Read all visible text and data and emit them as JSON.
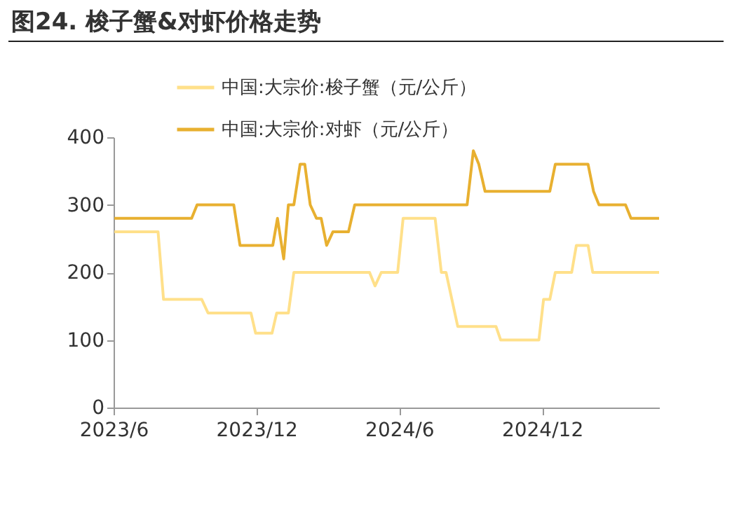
{
  "chart_data": {
    "type": "line",
    "title": "图24. 梭子蟹&对虾价格走势",
    "series": [
      {
        "name": "中国:大宗价:梭子蟹（元/公斤）",
        "color": "#ffe08a",
        "x": [
          "2023-06-02",
          "2023-07-28",
          "2023-08-04",
          "2023-09-22",
          "2023-09-30",
          "2023-11-24",
          "2023-11-30",
          "2023-12-21",
          "2023-12-27",
          "2024-01-11",
          "2024-01-18",
          "2024-04-24",
          "2024-05-01",
          "2024-05-09",
          "2024-05-30",
          "2024-06-06",
          "2024-07-17",
          "2024-07-25",
          "2024-07-31",
          "2024-08-15",
          "2024-10-03",
          "2024-10-09",
          "2024-11-27",
          "2024-12-03",
          "2024-12-11",
          "2024-12-18",
          "2025-01-08",
          "2025-01-14",
          "2025-01-29",
          "2025-02-04",
          "2025-04-30"
        ],
        "values": [
          260,
          260,
          160,
          160,
          140,
          140,
          110,
          110,
          140,
          140,
          200,
          200,
          180,
          200,
          200,
          280,
          280,
          200,
          200,
          120,
          120,
          100,
          100,
          160,
          160,
          200,
          200,
          240,
          240,
          200,
          200
        ]
      },
      {
        "name": "中国:大宗价:对虾（元/公斤）",
        "color": "#e8b030",
        "x": [
          "2023-06-02",
          "2023-09-09",
          "2023-09-16",
          "2023-11-02",
          "2023-11-10",
          "2023-12-22",
          "2023-12-28",
          "2024-01-05",
          "2024-01-11",
          "2024-01-18",
          "2024-01-26",
          "2024-02-01",
          "2024-02-08",
          "2024-02-16",
          "2024-02-22",
          "2024-02-29",
          "2024-03-08",
          "2024-03-28",
          "2024-04-05",
          "2024-08-27",
          "2024-09-04",
          "2024-09-11",
          "2024-09-19",
          "2024-12-11",
          "2024-12-18",
          "2025-01-29",
          "2025-02-05",
          "2025-02-12",
          "2025-03-18",
          "2025-03-25",
          "2025-04-30"
        ],
        "values": [
          280,
          280,
          300,
          300,
          240,
          240,
          280,
          220,
          300,
          300,
          360,
          360,
          300,
          280,
          280,
          240,
          260,
          260,
          300,
          300,
          380,
          360,
          320,
          320,
          360,
          360,
          320,
          300,
          300,
          280,
          280
        ]
      }
    ],
    "xlim": [
      "2023-06-01",
      "2025-04-30"
    ],
    "xticks": [
      {
        "value": "2023-06-01",
        "label": "2023/6"
      },
      {
        "value": "2023-12-01",
        "label": "2023/12"
      },
      {
        "value": "2024-06-01",
        "label": "2024/6"
      },
      {
        "value": "2024-12-01",
        "label": "2024/12"
      }
    ],
    "ylim": [
      0,
      400
    ],
    "yticks": [
      0,
      100,
      200,
      300,
      400
    ],
    "grid": false,
    "legend": "top",
    "marker": "none",
    "line_style": "solid"
  }
}
